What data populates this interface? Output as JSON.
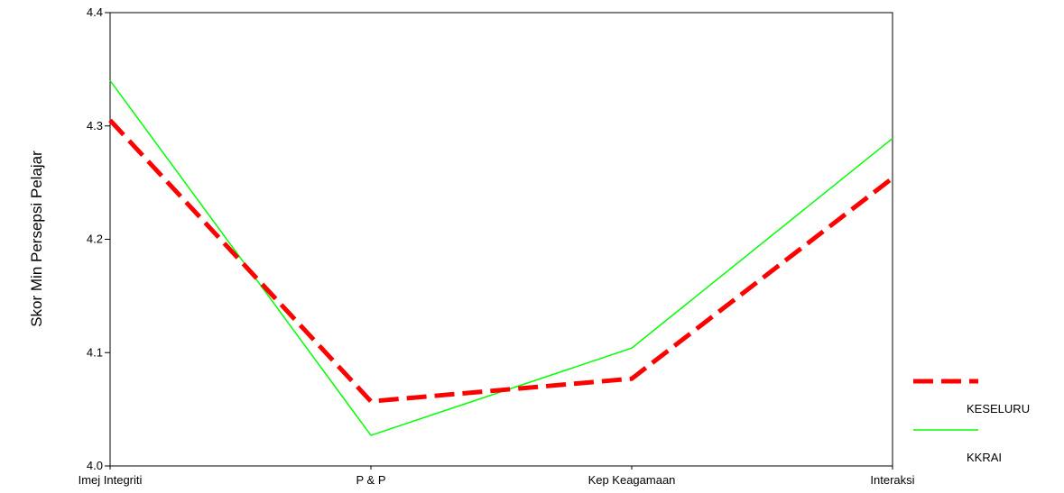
{
  "chart_data": {
    "type": "line",
    "title": "",
    "xlabel": "",
    "ylabel": "Skor Min Persepsi Pelajar",
    "categories": [
      "Imej Integriti",
      "P & P",
      "Kep Keagamaan",
      "Interaksi"
    ],
    "ylim": [
      4.0,
      4.4
    ],
    "yticks": [
      "4.0",
      "4.1",
      "4.2",
      "4.3",
      "4.4"
    ],
    "grid": false,
    "legend_position": "right",
    "series": [
      {
        "name": "KESELURU",
        "values": [
          4.305,
          4.057,
          4.077,
          4.254
        ],
        "color": "#ff0000",
        "style": "dashed"
      },
      {
        "name": "KKRAI",
        "values": [
          4.34,
          4.027,
          4.104,
          4.289
        ],
        "color": "#00ff00",
        "style": "solid"
      }
    ]
  }
}
